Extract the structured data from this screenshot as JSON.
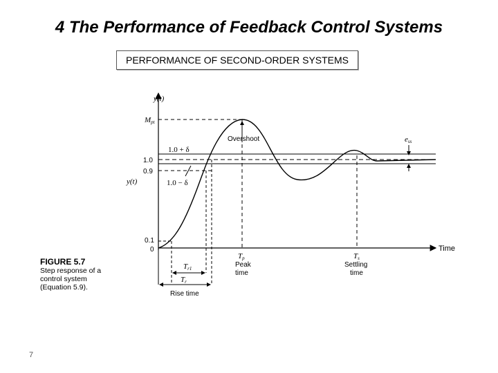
{
  "slide": {
    "title": "4 The Performance of  Feedback Control Systems",
    "subtitle": "PERFORMANCE OF SECOND-ORDER SYSTEMS",
    "page_number": "7"
  },
  "figure": {
    "caption_number": "FIGURE 5.7",
    "caption_lines": [
      "Step response of a",
      "control system",
      "(Equation 5.9)."
    ],
    "y_axis_label": "y(t)",
    "left_curve_label": "y(t)",
    "x_axis_label": "Time",
    "tick_labels": {
      "mpt": "M",
      "mpt_sub": "pt",
      "one_plus_delta": "1.0 + δ",
      "one": "1.0",
      "zero_nine": "0.9",
      "one_minus_delta": "1.0 − δ",
      "zero_one": "0.1",
      "zero": "0"
    },
    "annotations": {
      "overshoot": "Overshoot",
      "ess": "e",
      "ess_sub": "ss",
      "tp": "T",
      "tp_sub": "p",
      "peak_time_1": "Peak",
      "peak_time_2": "time",
      "ts": "T",
      "ts_sub": "s",
      "settling_time_1": "Settling",
      "settling_time_2": "time",
      "tr1": "T",
      "tr1_sub": "r1",
      "tr": "T",
      "tr_sub": "r",
      "rise_time": "Rise time"
    }
  }
}
